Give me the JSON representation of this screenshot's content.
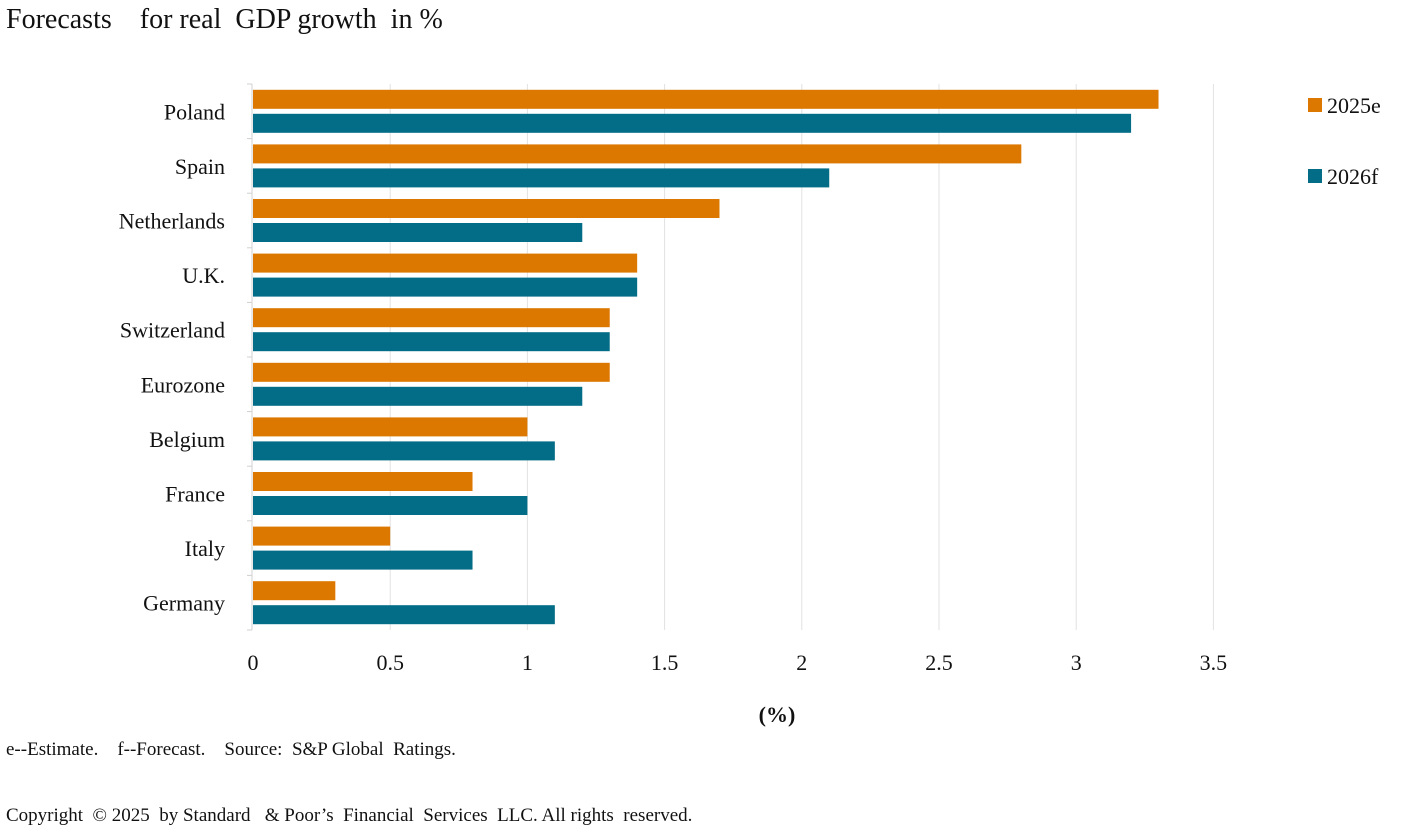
{
  "title": "Forecasts    for real  GDP growth  in %",
  "footnote": "e--Estimate.    f--Forecast.    Source:  S&P Global  Ratings.",
  "copyright": "Copyright  © 2025  by Standard   & Poor’s  Financial  Services  LLC. All rights  reserved.",
  "chart_data": {
    "type": "bar",
    "orientation": "horizontal",
    "title": "Forecasts for real GDP growth in %",
    "xlabel": "(%)",
    "ylabel": "",
    "xlim": [
      0,
      3.5
    ],
    "xticks": [
      0,
      0.5,
      1,
      1.5,
      2,
      2.5,
      3,
      3.5
    ],
    "xtick_labels": [
      "0",
      "0.5",
      "1",
      "1.5",
      "2",
      "2.5",
      "3",
      "3.5"
    ],
    "grid": "vertical",
    "legend_position": "top-right",
    "categories": [
      "Poland",
      "Spain",
      "Netherlands",
      "U.K.",
      "Switzerland",
      "Eurozone",
      "Belgium",
      "France",
      "Italy",
      "Germany"
    ],
    "series": [
      {
        "name": "2025e",
        "color": "#DC7700",
        "values": [
          3.3,
          2.8,
          1.7,
          1.4,
          1.3,
          1.3,
          1.0,
          0.8,
          0.5,
          0.3
        ]
      },
      {
        "name": "2026f",
        "color": "#036C87",
        "values": [
          3.2,
          2.1,
          1.2,
          1.4,
          1.3,
          1.2,
          1.1,
          1.0,
          0.8,
          1.1
        ]
      }
    ]
  }
}
